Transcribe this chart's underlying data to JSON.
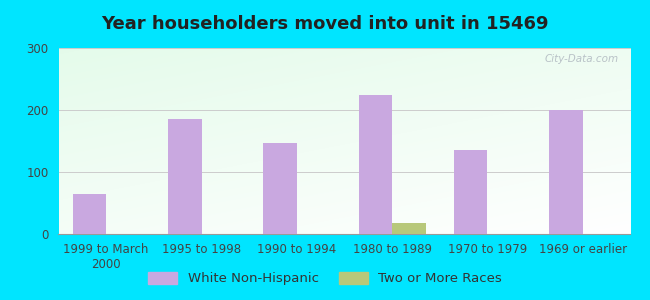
{
  "title": "Year householders moved into unit in 15469",
  "categories": [
    "1999 to March\n2000",
    "1995 to 1998",
    "1990 to 1994",
    "1980 to 1989",
    "1970 to 1979",
    "1969 or earlier"
  ],
  "white_non_hispanic": [
    65,
    185,
    147,
    225,
    135,
    200
  ],
  "two_or_more_races": [
    0,
    0,
    0,
    18,
    0,
    0
  ],
  "bar_width": 0.35,
  "white_color": "#c9a8e0",
  "two_or_more_color": "#b8c87a",
  "background_outer": "#00e5ff",
  "ylim": [
    0,
    300
  ],
  "yticks": [
    0,
    100,
    200,
    300
  ],
  "title_fontsize": 13,
  "tick_fontsize": 8.5,
  "legend_fontsize": 9.5,
  "watermark": "City-Data.com"
}
